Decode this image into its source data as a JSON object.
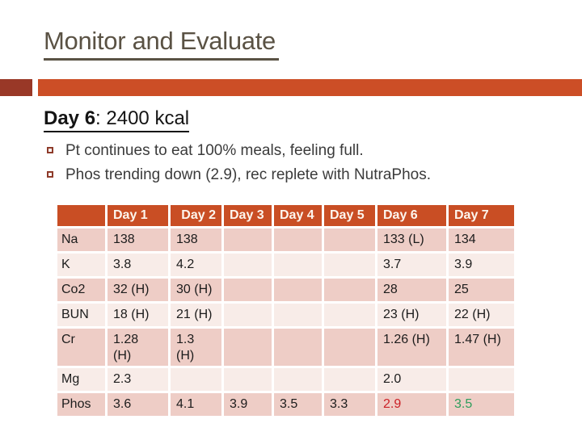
{
  "slide": {
    "title": "Monitor and Evaluate",
    "heading": {
      "bold": "Day 6",
      "rest": ": 2400 kcal"
    },
    "bullets": [
      "Pt continues to eat 100% meals, feeling full.",
      "Phos trending down (2.9), rec replete with NutraPhos."
    ],
    "colors": {
      "accent_bar": "#cc4e26",
      "accent_square": "#993827",
      "title_text": "#5a5244",
      "table_header_bg": "#c94e24",
      "table_header_text": "#fdf6ee",
      "row_shade_dark": "#eecdc6",
      "row_shade_light": "#f8ece8",
      "low_value_red": "#cb2026",
      "recovered_value_green": "#2e9e5c"
    }
  },
  "table": {
    "columns": [
      "",
      "Day 1",
      "Day 2",
      "Day 3",
      "Day 4",
      "Day 5",
      "Day 6",
      "Day 7"
    ],
    "rows": [
      {
        "label": "Na",
        "values": [
          "138",
          "138",
          "",
          "",
          "",
          "133 (L)",
          "134"
        ]
      },
      {
        "label": "K",
        "values": [
          "3.8",
          "4.2",
          "",
          "",
          "",
          "3.7",
          "3.9"
        ]
      },
      {
        "label": "Co2",
        "values": [
          "32 (H)",
          "30 (H)",
          "",
          "",
          "",
          "28",
          "25"
        ]
      },
      {
        "label": "BUN",
        "values": [
          "18 (H)",
          "21 (H)",
          "",
          "",
          "",
          "23 (H)",
          "22 (H)"
        ]
      },
      {
        "label": "Cr",
        "values": [
          "1.28\n(H)",
          "1.3\n(H)",
          "",
          "",
          "",
          "1.26 (H)",
          "1.47 (H)"
        ]
      },
      {
        "label": "Mg",
        "values": [
          "2.3",
          "",
          "",
          "",
          "",
          "2.0",
          ""
        ]
      },
      {
        "label": "Phos",
        "values": [
          "3.6",
          "4.1",
          "3.9",
          "3.5",
          "3.3",
          "2.9",
          "3.5"
        ],
        "value_colors": {
          "5": "#cb2026",
          "6": "#2e9e5c"
        }
      }
    ]
  }
}
